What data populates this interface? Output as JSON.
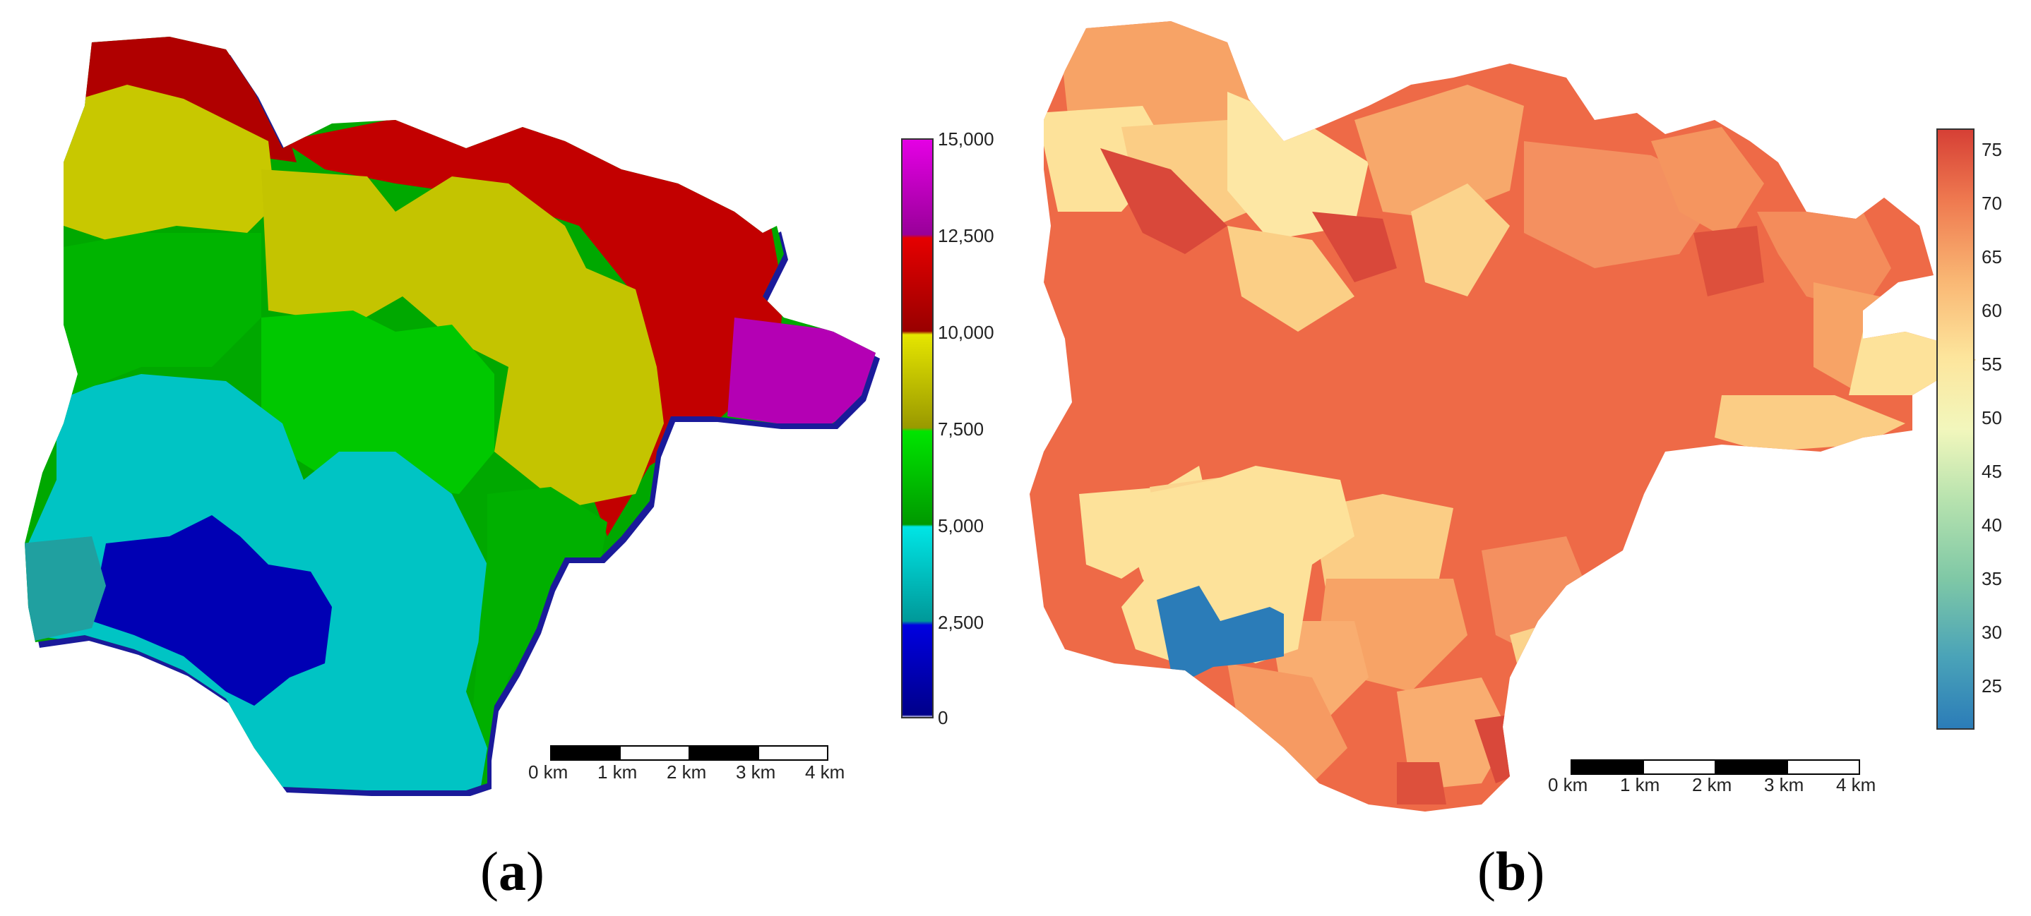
{
  "panels": [
    {
      "id": "a",
      "caption_open": "(",
      "caption_letter": "a",
      "caption_close": ")",
      "colorbar": {
        "ticks": [
          "15,000",
          "12,500",
          "10,000",
          "7,500",
          "5,000",
          "2,500",
          "0"
        ],
        "colors": [
          "#d400d4",
          "#cc0000",
          "#cccc00",
          "#00cc00",
          "#00cccc",
          "#0000b0"
        ]
      },
      "scalebar": {
        "labels": [
          "0 km",
          "1 km",
          "2 km",
          "3 km",
          "4 km"
        ]
      }
    },
    {
      "id": "b",
      "caption_open": "(",
      "caption_letter": "b",
      "caption_close": ")",
      "colorbar": {
        "ticks": [
          "75",
          "70",
          "65",
          "60",
          "55",
          "50",
          "45",
          "40",
          "35",
          "30",
          "25"
        ],
        "colors": [
          "#d9483a",
          "#ec6e4e",
          "#f7a96a",
          "#fde29a",
          "#f5f5be",
          "#cfeab4",
          "#97d4a6",
          "#5fb6a9",
          "#3b8fbc",
          "#2b7cb8"
        ]
      },
      "scalebar": {
        "labels": [
          "0 km",
          "1 km",
          "2 km",
          "3 km",
          "4 km"
        ]
      }
    }
  ]
}
